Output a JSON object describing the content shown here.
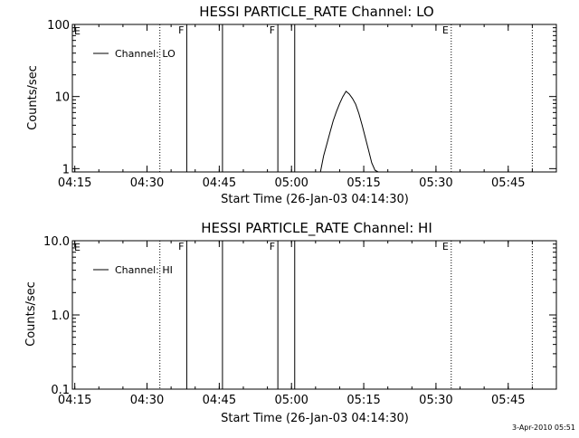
{
  "footer": {
    "timestamp": "3-Apr-2010 05:51"
  },
  "chart_data": [
    {
      "type": "line",
      "title": "HESSI PARTICLE_RATE Channel: LO",
      "xlabel": "Start Time (26-Jan-03 04:14:30)",
      "ylabel": "Counts/sec",
      "yscale": "log",
      "xlim": [
        "04:14:30",
        "05:55:00"
      ],
      "ylim": [
        0.9,
        100
      ],
      "xticks": [
        "04:15",
        "04:30",
        "04:45",
        "05:00",
        "05:15",
        "05:30",
        "05:45"
      ],
      "yticks": [
        "1",
        "10",
        "100"
      ],
      "legend": {
        "position": "top-left",
        "entries": [
          "Channel: LO"
        ]
      },
      "series": [
        {
          "name": "Channel: LO",
          "x": [
            "05:06:00",
            "05:06:40",
            "05:07:20",
            "05:08:00",
            "05:08:40",
            "05:09:20",
            "05:10:00",
            "05:10:40",
            "05:11:20",
            "05:12:00",
            "05:12:40",
            "05:13:20",
            "05:14:00",
            "05:14:40",
            "05:15:20",
            "05:16:00",
            "05:16:40",
            "05:17:20",
            "05:18:00"
          ],
          "values": [
            0.9,
            1.5,
            2.2,
            3.2,
            4.6,
            6.2,
            8.0,
            10.0,
            11.8,
            10.8,
            9.4,
            7.8,
            5.8,
            4.0,
            2.7,
            1.8,
            1.2,
            0.95,
            0.9
          ]
        }
      ],
      "vlines": [
        {
          "time": "04:32:40",
          "style": "dotted",
          "label": ""
        },
        {
          "time": "04:38:15",
          "style": "solid",
          "label": "F"
        },
        {
          "time": "04:45:40",
          "style": "solid",
          "label": ""
        },
        {
          "time": "04:57:10",
          "style": "solid",
          "label": "F"
        },
        {
          "time": "05:00:40",
          "style": "solid",
          "label": ""
        },
        {
          "time": "05:33:10",
          "style": "dotted",
          "label": "E"
        },
        {
          "time": "05:50:00",
          "style": "dotted",
          "label": ""
        }
      ],
      "left_marker": "E"
    },
    {
      "type": "line",
      "title": "HESSI PARTICLE_RATE Channel: HI",
      "xlabel": "Start Time (26-Jan-03 04:14:30)",
      "ylabel": "Counts/sec",
      "yscale": "log",
      "xlim": [
        "04:14:30",
        "05:55:00"
      ],
      "ylim": [
        0.1,
        10.0
      ],
      "xticks": [
        "04:15",
        "04:30",
        "04:45",
        "05:00",
        "05:15",
        "05:30",
        "05:45"
      ],
      "yticks": [
        "0.1",
        "1.0",
        "10.0"
      ],
      "legend": {
        "position": "top-left",
        "entries": [
          "Channel: HI"
        ]
      },
      "series": [
        {
          "name": "Channel: HI",
          "x": [],
          "values": []
        }
      ],
      "vlines": [
        {
          "time": "04:32:40",
          "style": "dotted",
          "label": ""
        },
        {
          "time": "04:38:15",
          "style": "solid",
          "label": "F"
        },
        {
          "time": "04:45:40",
          "style": "solid",
          "label": ""
        },
        {
          "time": "04:57:10",
          "style": "solid",
          "label": "F"
        },
        {
          "time": "05:00:40",
          "style": "solid",
          "label": ""
        },
        {
          "time": "05:33:10",
          "style": "dotted",
          "label": "E"
        },
        {
          "time": "05:50:00",
          "style": "dotted",
          "label": ""
        }
      ],
      "left_marker": "E"
    }
  ]
}
